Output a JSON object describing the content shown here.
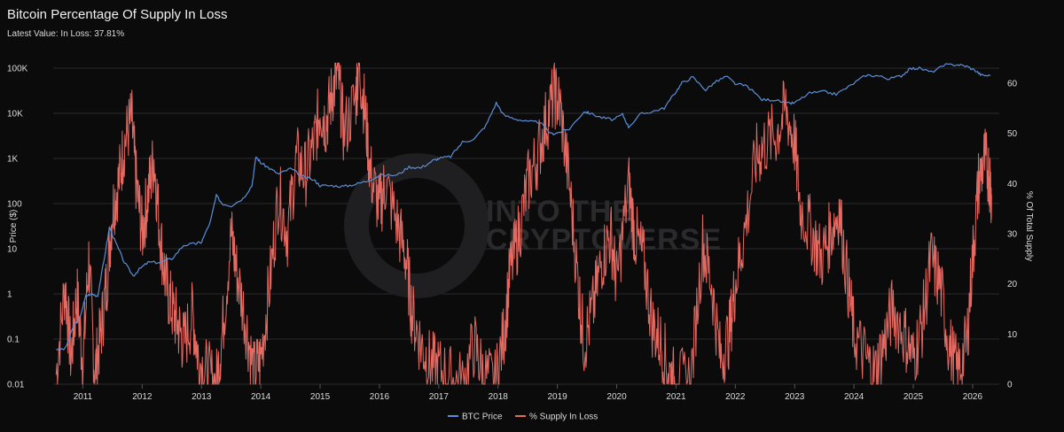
{
  "header": {
    "title": "Bitcoin Percentage Of Supply In Loss",
    "subtitle": "Latest Value: In Loss: 37.81%"
  },
  "watermark": {
    "line1": "INTO THE",
    "line2": "CRYPTOVERSE"
  },
  "colors": {
    "btc_price": "#5b8fd8",
    "supply_in_loss": "#e46a62",
    "background": "#0b0b0c",
    "grid": "#2b2b2e"
  },
  "chart_data": {
    "type": "line",
    "title": "Bitcoin Percentage Of Supply In Loss",
    "xlim": [
      2010.5,
      2026.45
    ],
    "x_ticks": [
      "2011",
      "2012",
      "2013",
      "2014",
      "2015",
      "2016",
      "2017",
      "2018",
      "2019",
      "2020",
      "2021",
      "2022",
      "2023",
      "2024",
      "2025",
      "2026"
    ],
    "y_left": {
      "label": "Price ($)",
      "scale": "log",
      "lim": [
        0.01,
        100000
      ],
      "ticks": [
        "0.01",
        "0.1",
        "1",
        "10",
        "100",
        "1K",
        "10K",
        "100K"
      ]
    },
    "y_right": {
      "label": "% Of Total Supply",
      "lim": [
        0,
        63
      ],
      "ticks": [
        0,
        10,
        20,
        30,
        40,
        50,
        60
      ]
    },
    "grid": true,
    "legend": "bottom-center",
    "series": [
      {
        "name": "BTC Price",
        "axis": "left",
        "points": [
          [
            2010.55,
            0.06
          ],
          [
            2010.7,
            0.06
          ],
          [
            2010.85,
            0.2
          ],
          [
            2010.95,
            0.3
          ],
          [
            2011.05,
            0.9
          ],
          [
            2011.15,
            1.0
          ],
          [
            2011.25,
            0.9
          ],
          [
            2011.35,
            5
          ],
          [
            2011.45,
            30
          ],
          [
            2011.55,
            14
          ],
          [
            2011.7,
            5
          ],
          [
            2011.85,
            2.5
          ],
          [
            2011.95,
            3.5
          ],
          [
            2012.1,
            5
          ],
          [
            2012.3,
            5
          ],
          [
            2012.5,
            6
          ],
          [
            2012.7,
            12
          ],
          [
            2012.9,
            13
          ],
          [
            2013.0,
            14
          ],
          [
            2013.15,
            40
          ],
          [
            2013.25,
            150
          ],
          [
            2013.35,
            100
          ],
          [
            2013.5,
            90
          ],
          [
            2013.7,
            130
          ],
          [
            2013.85,
            250
          ],
          [
            2013.92,
            1100
          ],
          [
            2014.0,
            800
          ],
          [
            2014.15,
            600
          ],
          [
            2014.3,
            450
          ],
          [
            2014.5,
            600
          ],
          [
            2014.7,
            400
          ],
          [
            2014.9,
            330
          ],
          [
            2015.0,
            250
          ],
          [
            2015.2,
            250
          ],
          [
            2015.4,
            240
          ],
          [
            2015.6,
            270
          ],
          [
            2015.8,
            320
          ],
          [
            2016.0,
            420
          ],
          [
            2016.3,
            430
          ],
          [
            2016.5,
            650
          ],
          [
            2016.7,
            620
          ],
          [
            2016.9,
            900
          ],
          [
            2017.0,
            1000
          ],
          [
            2017.2,
            1100
          ],
          [
            2017.4,
            2300
          ],
          [
            2017.6,
            2700
          ],
          [
            2017.8,
            5500
          ],
          [
            2017.97,
            17000
          ],
          [
            2018.1,
            9000
          ],
          [
            2018.3,
            7500
          ],
          [
            2018.5,
            6500
          ],
          [
            2018.7,
            6400
          ],
          [
            2018.9,
            3500
          ],
          [
            2019.0,
            3700
          ],
          [
            2019.2,
            4500
          ],
          [
            2019.45,
            11000
          ],
          [
            2019.55,
            10000
          ],
          [
            2019.75,
            8000
          ],
          [
            2019.95,
            7200
          ],
          [
            2020.1,
            9500
          ],
          [
            2020.2,
            5000
          ],
          [
            2020.4,
            9500
          ],
          [
            2020.6,
            11000
          ],
          [
            2020.8,
            13000
          ],
          [
            2020.99,
            29000
          ],
          [
            2021.1,
            47000
          ],
          [
            2021.28,
            63000
          ],
          [
            2021.5,
            33000
          ],
          [
            2021.65,
            48000
          ],
          [
            2021.85,
            66000
          ],
          [
            2022.0,
            45000
          ],
          [
            2022.2,
            40000
          ],
          [
            2022.45,
            20000
          ],
          [
            2022.65,
            20000
          ],
          [
            2022.88,
            16500
          ],
          [
            2023.0,
            17000
          ],
          [
            2023.25,
            28000
          ],
          [
            2023.5,
            30000
          ],
          [
            2023.7,
            26500
          ],
          [
            2023.95,
            42000
          ],
          [
            2024.2,
            70000
          ],
          [
            2024.4,
            68000
          ],
          [
            2024.6,
            58000
          ],
          [
            2024.8,
            68000
          ],
          [
            2024.95,
            97000
          ],
          [
            2025.1,
            100000
          ],
          [
            2025.3,
            82000
          ],
          [
            2025.55,
            118000
          ],
          [
            2025.75,
            120000
          ],
          [
            2025.9,
            110000
          ],
          [
            2026.05,
            88000
          ],
          [
            2026.15,
            70000
          ],
          [
            2026.3,
            68000
          ]
        ]
      },
      {
        "name": "% Supply In Loss",
        "axis": "right",
        "points": [
          [
            2010.55,
            2
          ],
          [
            2010.7,
            20
          ],
          [
            2010.8,
            5
          ],
          [
            2010.9,
            18
          ],
          [
            2011.0,
            4
          ],
          [
            2011.1,
            25
          ],
          [
            2011.2,
            2
          ],
          [
            2011.3,
            10
          ],
          [
            2011.4,
            20
          ],
          [
            2011.5,
            35
          ],
          [
            2011.6,
            40
          ],
          [
            2011.7,
            48
          ],
          [
            2011.82,
            53
          ],
          [
            2011.9,
            40
          ],
          [
            2012.0,
            30
          ],
          [
            2012.1,
            38
          ],
          [
            2012.2,
            45
          ],
          [
            2012.3,
            30
          ],
          [
            2012.4,
            20
          ],
          [
            2012.5,
            15
          ],
          [
            2012.6,
            12
          ],
          [
            2012.7,
            8
          ],
          [
            2012.85,
            14
          ],
          [
            2012.95,
            5
          ],
          [
            2013.1,
            2
          ],
          [
            2013.25,
            0
          ],
          [
            2013.35,
            10
          ],
          [
            2013.5,
            30
          ],
          [
            2013.6,
            22
          ],
          [
            2013.75,
            12
          ],
          [
            2013.88,
            2
          ],
          [
            2014.0,
            5
          ],
          [
            2014.15,
            20
          ],
          [
            2014.3,
            38
          ],
          [
            2014.45,
            30
          ],
          [
            2014.6,
            45
          ],
          [
            2014.75,
            42
          ],
          [
            2014.9,
            48
          ],
          [
            2015.0,
            55
          ],
          [
            2015.1,
            52
          ],
          [
            2015.2,
            58
          ],
          [
            2015.3,
            62
          ],
          [
            2015.4,
            50
          ],
          [
            2015.6,
            57
          ],
          [
            2015.65,
            64
          ],
          [
            2015.75,
            55
          ],
          [
            2015.85,
            42
          ],
          [
            2016.0,
            35
          ],
          [
            2016.1,
            40
          ],
          [
            2016.3,
            32
          ],
          [
            2016.45,
            25
          ],
          [
            2016.55,
            14
          ],
          [
            2016.7,
            8
          ],
          [
            2016.85,
            4
          ],
          [
            2017.0,
            3
          ],
          [
            2017.2,
            1
          ],
          [
            2017.4,
            0
          ],
          [
            2017.6,
            8
          ],
          [
            2017.75,
            2
          ],
          [
            2017.95,
            0
          ],
          [
            2018.1,
            10
          ],
          [
            2018.2,
            22
          ],
          [
            2018.35,
            30
          ],
          [
            2018.5,
            40
          ],
          [
            2018.65,
            45
          ],
          [
            2018.8,
            52
          ],
          [
            2018.95,
            58
          ],
          [
            2019.05,
            55
          ],
          [
            2019.2,
            40
          ],
          [
            2019.35,
            20
          ],
          [
            2019.45,
            8
          ],
          [
            2019.6,
            15
          ],
          [
            2019.75,
            25
          ],
          [
            2019.9,
            30
          ],
          [
            2020.0,
            20
          ],
          [
            2020.2,
            40
          ],
          [
            2020.3,
            30
          ],
          [
            2020.45,
            25
          ],
          [
            2020.6,
            12
          ],
          [
            2020.75,
            8
          ],
          [
            2020.9,
            2
          ],
          [
            2021.0,
            0
          ],
          [
            2021.25,
            1
          ],
          [
            2021.45,
            28
          ],
          [
            2021.6,
            20
          ],
          [
            2021.75,
            5
          ],
          [
            2021.9,
            10
          ],
          [
            2022.0,
            20
          ],
          [
            2022.15,
            30
          ],
          [
            2022.35,
            45
          ],
          [
            2022.5,
            48
          ],
          [
            2022.7,
            50
          ],
          [
            2022.85,
            55
          ],
          [
            2023.0,
            48
          ],
          [
            2023.1,
            35
          ],
          [
            2023.3,
            30
          ],
          [
            2023.45,
            25
          ],
          [
            2023.6,
            30
          ],
          [
            2023.75,
            35
          ],
          [
            2023.9,
            20
          ],
          [
            2024.0,
            10
          ],
          [
            2024.2,
            5
          ],
          [
            2024.35,
            2
          ],
          [
            2024.5,
            8
          ],
          [
            2024.65,
            15
          ],
          [
            2024.85,
            10
          ],
          [
            2025.0,
            5
          ],
          [
            2025.15,
            12
          ],
          [
            2025.3,
            25
          ],
          [
            2025.45,
            20
          ],
          [
            2025.6,
            8
          ],
          [
            2025.75,
            2
          ],
          [
            2025.9,
            8
          ],
          [
            2026.0,
            25
          ],
          [
            2026.1,
            40
          ],
          [
            2026.2,
            45
          ],
          [
            2026.28,
            42
          ],
          [
            2026.32,
            37.81
          ]
        ]
      }
    ]
  },
  "legend": [
    {
      "name": "BTC Price",
      "color": "#5b8fd8"
    },
    {
      "name": "% Supply In Loss",
      "color": "#e46a62"
    }
  ]
}
